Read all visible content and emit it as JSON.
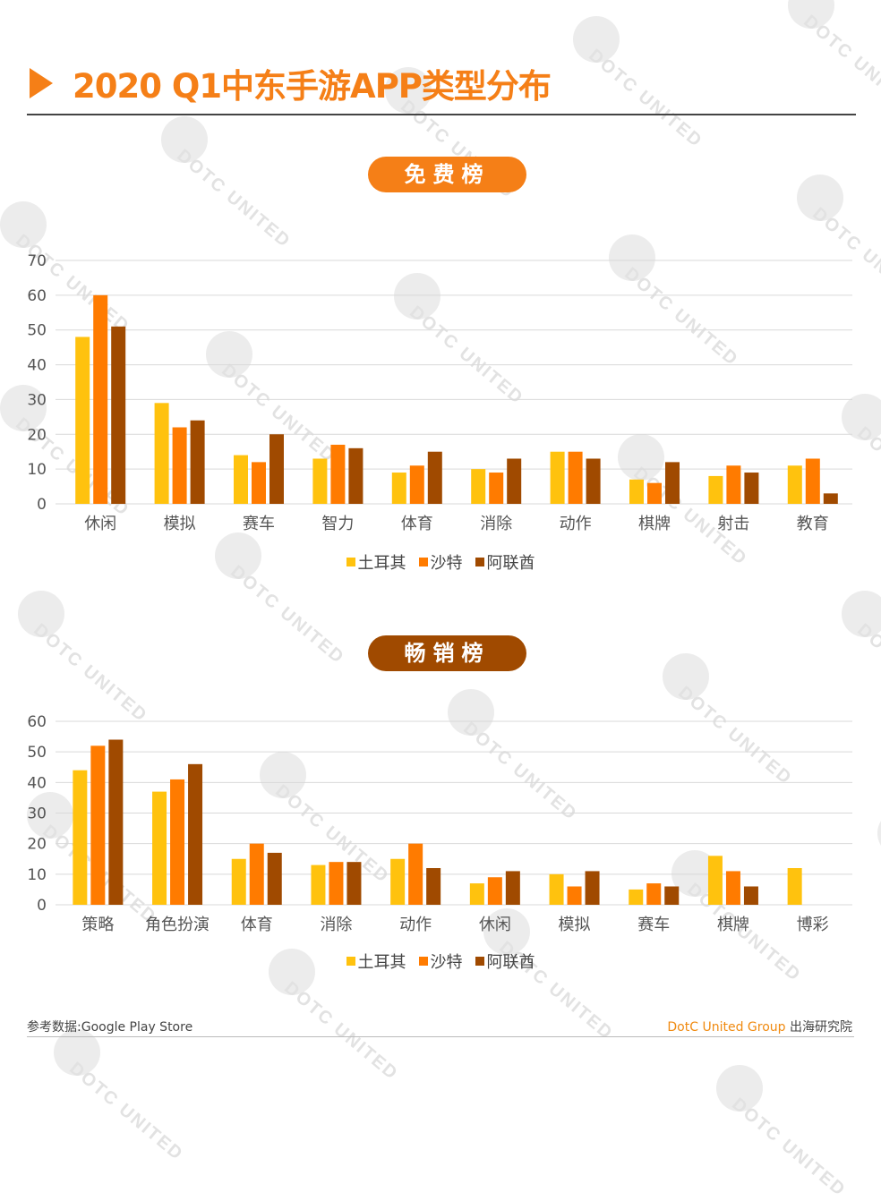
{
  "header": {
    "title": "2020 Q1中东手游APP类型分布",
    "accent_color": "#f57f17"
  },
  "colors": {
    "turkey": "#ffc20e",
    "saudi": "#ff7b00",
    "uae": "#a04a00",
    "grid": "#d9d9d9",
    "axis_text": "#555555",
    "pill_free": "#f57f17",
    "pill_grossing": "#a04a00"
  },
  "watermark": {
    "text": "DOTC UNITED"
  },
  "sections": {
    "free": {
      "label": "免费榜"
    },
    "grossing": {
      "label": "畅销榜"
    }
  },
  "legend": [
    "土耳其",
    "沙特",
    "阿联酋"
  ],
  "footer": {
    "source": "参考数据:Google Play Store",
    "brand": "DotC United Group",
    "institute": "出海研究院"
  },
  "chart_data": [
    {
      "type": "bar",
      "title": "免费榜",
      "xlabel": "",
      "ylabel": "",
      "ylim": [
        0,
        70
      ],
      "yticks": [
        0,
        10,
        20,
        30,
        40,
        50,
        60,
        70
      ],
      "grid": true,
      "legend_position": "bottom",
      "categories": [
        "休闲",
        "模拟",
        "赛车",
        "智力",
        "体育",
        "消除",
        "动作",
        "棋牌",
        "射击",
        "教育"
      ],
      "series": [
        {
          "name": "土耳其",
          "color": "#ffc20e",
          "values": [
            48,
            29,
            14,
            13,
            9,
            10,
            15,
            7,
            8,
            11
          ]
        },
        {
          "name": "沙特",
          "color": "#ff7b00",
          "values": [
            60,
            22,
            12,
            17,
            11,
            9,
            15,
            6,
            11,
            13
          ]
        },
        {
          "name": "阿联酋",
          "color": "#a04a00",
          "values": [
            51,
            24,
            20,
            16,
            15,
            13,
            13,
            12,
            9,
            3
          ]
        }
      ]
    },
    {
      "type": "bar",
      "title": "畅销榜",
      "xlabel": "",
      "ylabel": "",
      "ylim": [
        0,
        60
      ],
      "yticks": [
        0,
        10,
        20,
        30,
        40,
        50,
        60
      ],
      "grid": true,
      "legend_position": "bottom",
      "categories": [
        "策略",
        "角色扮演",
        "体育",
        "消除",
        "动作",
        "休闲",
        "模拟",
        "赛车",
        "棋牌",
        "博彩"
      ],
      "series": [
        {
          "name": "土耳其",
          "color": "#ffc20e",
          "values": [
            44,
            37,
            15,
            13,
            15,
            7,
            10,
            5,
            16,
            12
          ]
        },
        {
          "name": "沙特",
          "color": "#ff7b00",
          "values": [
            52,
            41,
            20,
            14,
            20,
            9,
            6,
            7,
            11,
            0
          ]
        },
        {
          "name": "阿联酋",
          "color": "#a04a00",
          "values": [
            54,
            46,
            17,
            14,
            12,
            11,
            11,
            6,
            6,
            0
          ]
        }
      ]
    }
  ]
}
